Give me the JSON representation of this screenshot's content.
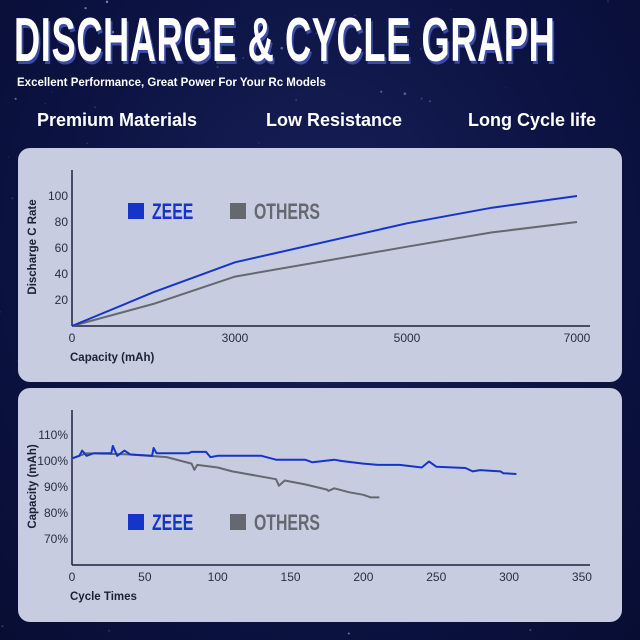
{
  "header": {
    "title": "DISCHARGE & CYCLE GRAPH",
    "subtitle": "Excellent Performance, Great Power For Your Rc Models",
    "features": [
      "Premium Materials",
      "Low Resistance",
      "Long Cycle life"
    ]
  },
  "colors": {
    "zeee": "#1535c8",
    "others": "#66686f",
    "background": "#0c1342",
    "panel": "#c8cce0"
  },
  "chart_data": [
    {
      "type": "line",
      "xlabel": "Capacity (mAh)",
      "ylabel": "Discharge C Rate",
      "x_ticks": [
        "0",
        "3000",
        "5000",
        "7000"
      ],
      "y_ticks": [
        "20",
        "40",
        "60",
        "80",
        "100"
      ],
      "xlim": [
        0,
        7000
      ],
      "ylim": [
        0,
        120
      ],
      "legend": "top-left",
      "series": [
        {
          "name": "ZEEE",
          "x": [
            0,
            1500,
            3000,
            5000,
            6000,
            7000
          ],
          "y": [
            0,
            26,
            49,
            79,
            91,
            100
          ]
        },
        {
          "name": "OTHERS",
          "x": [
            0,
            1500,
            3000,
            5000,
            6000,
            7000
          ],
          "y": [
            0,
            17,
            38,
            61,
            72,
            80
          ]
        }
      ]
    },
    {
      "type": "line",
      "xlabel": "Cycle Times",
      "ylabel": "Capacity (mAh)",
      "x_ticks": [
        "0",
        "50",
        "100",
        "150",
        "200",
        "250",
        "300",
        "350"
      ],
      "y_ticks": [
        "70%",
        "80%",
        "90%",
        "100%",
        "110%"
      ],
      "xlim": [
        0,
        350
      ],
      "ylim": [
        60,
        120
      ],
      "legend": "bottom-left",
      "series": [
        {
          "name": "ZEEE",
          "x": [
            0,
            5,
            7,
            10,
            15,
            27,
            28,
            31,
            36,
            40,
            55,
            56,
            58,
            80,
            82,
            92,
            95,
            100,
            130,
            140,
            150,
            160,
            165,
            180,
            185,
            200,
            210,
            225,
            240,
            245,
            250,
            270,
            275,
            280,
            294,
            296,
            305
          ],
          "y": [
            101,
            102,
            104,
            102,
            103,
            103,
            105.8,
            102,
            104,
            102.5,
            102,
            105,
            103,
            103,
            103.5,
            103.5,
            101.5,
            102,
            102,
            100.5,
            100.5,
            100.5,
            99.5,
            100.5,
            100,
            99,
            98.5,
            98.5,
            97.5,
            99.8,
            97.8,
            97.3,
            96,
            96.5,
            96,
            95.3,
            95
          ]
        },
        {
          "name": "OTHERS",
          "x": [
            0,
            10,
            40,
            65,
            82,
            84,
            86,
            100,
            110,
            140,
            142,
            146,
            160,
            175,
            176,
            180,
            190,
            200,
            205,
            211
          ],
          "y": [
            101,
            103,
            102.5,
            101.5,
            99,
            96.6,
            98.5,
            97.5,
            96,
            93,
            90.5,
            92.5,
            91,
            89,
            88.5,
            89.5,
            88,
            87,
            86,
            86
          ]
        }
      ]
    }
  ]
}
